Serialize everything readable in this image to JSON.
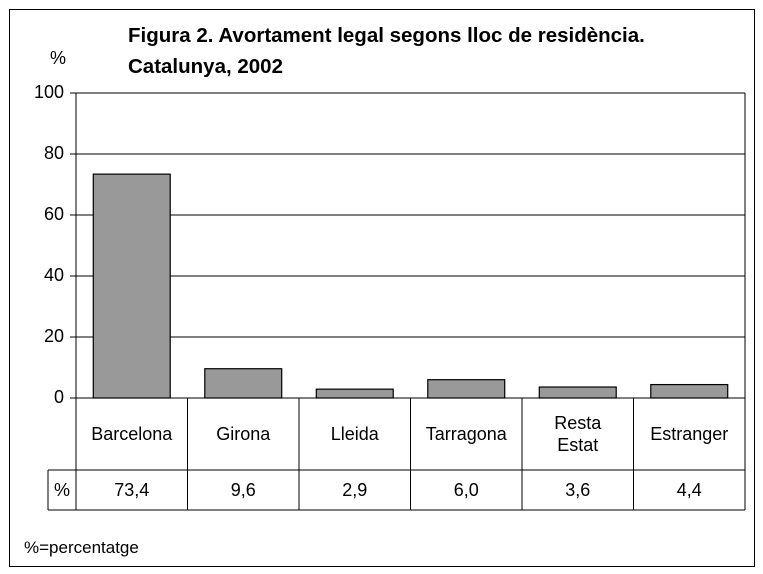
{
  "chart_data": {
    "type": "bar",
    "title": "Figura 2. Avortament legal segons lloc de residència. Catalunya,  2002",
    "y_label": "%",
    "categories": [
      "Barcelona",
      "Girona",
      "Lleida",
      "Tarragona",
      "Resta\nEstat",
      "Estranger"
    ],
    "series": [
      {
        "name": "%",
        "color": "#999999",
        "values": [
          73.4,
          9.6,
          2.9,
          6.0,
          3.6,
          4.4
        ],
        "value_labels": [
          "73,4",
          "9,6",
          "2,9",
          "6,0",
          "3,6",
          "4,4"
        ]
      }
    ],
    "ylim": [
      0,
      100
    ],
    "yticks": [
      0,
      20,
      40,
      60,
      80,
      100
    ],
    "grid": true,
    "note": "%=percentatge"
  }
}
